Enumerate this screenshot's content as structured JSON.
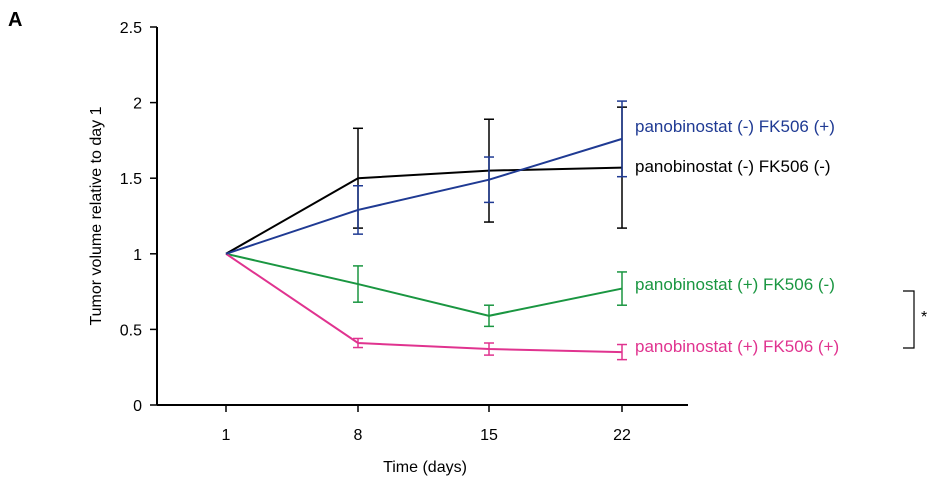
{
  "panel_label": "A",
  "chart_data": {
    "type": "line",
    "title": "",
    "xlabel": "Time (days)",
    "ylabel": "Tumor volume relative to day 1",
    "x": [
      1,
      8,
      15,
      22
    ],
    "x_tick_labels": [
      "1",
      "8",
      "15",
      "22"
    ],
    "ylim": [
      0,
      2.5
    ],
    "y_ticks": [
      0,
      0.5,
      1,
      1.5,
      2,
      2.5
    ],
    "y_tick_labels": [
      "0",
      "0.5",
      "1",
      "1.5",
      "2",
      "2.5"
    ],
    "grid": false,
    "series": [
      {
        "name": "panobinostat (-) FK506 (+)",
        "color": "#1f3a93",
        "values": [
          1.0,
          1.29,
          1.49,
          1.76
        ],
        "error": [
          0,
          0.16,
          0.15,
          0.25
        ]
      },
      {
        "name": "panobinostat (-) FK506 (-)",
        "color": "#000000",
        "values": [
          1.0,
          1.5,
          1.55,
          1.57
        ],
        "error": [
          0,
          0.33,
          0.34,
          0.4
        ]
      },
      {
        "name": "panobinostat (+) FK506 (-)",
        "color": "#1a9641",
        "values": [
          1.0,
          0.8,
          0.59,
          0.77
        ],
        "error": [
          0,
          0.12,
          0.07,
          0.11
        ]
      },
      {
        "name": "panobinostat (+) FK506 (+)",
        "color": "#e0338f",
        "values": [
          1.0,
          0.41,
          0.37,
          0.35
        ],
        "error": [
          0,
          0.03,
          0.04,
          0.05
        ]
      }
    ],
    "annotations": [
      {
        "text": "*",
        "between_series": [
          2,
          3
        ]
      }
    ]
  }
}
